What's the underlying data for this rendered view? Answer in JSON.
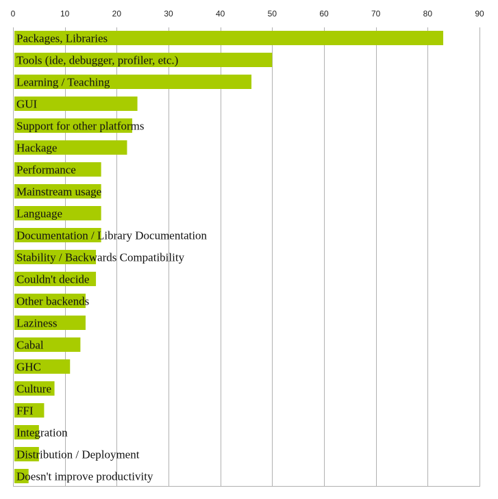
{
  "chart_data": {
    "type": "bar",
    "orientation": "horizontal",
    "title": "",
    "xlabel": "",
    "ylabel": "",
    "xlim": [
      0,
      90
    ],
    "x_ticks": [
      0,
      10,
      20,
      30,
      40,
      50,
      60,
      70,
      80,
      90
    ],
    "x_tick_labels": [
      "0",
      "10",
      "20",
      "30",
      "40",
      "50",
      "60",
      "70",
      "80",
      "90"
    ],
    "x_axis_position": "top",
    "grid": "vertical",
    "legend": "none",
    "bar_color": "#a8cc00",
    "grid_color": "#b0b0b0",
    "categories": [
      "Packages, Libraries",
      "Tools (ide, debugger, profiler, etc.)",
      "Learning / Teaching",
      "GUI",
      "Support for other platforms",
      "Hackage",
      "Performance",
      "Mainstream usage",
      "Language",
      "Documentation / Library Documentation",
      "Stability / Backwards Compatibility",
      "Couldn't decide",
      "Other backends",
      "Laziness",
      "Cabal",
      "GHC",
      "Culture",
      "FFI",
      "Integration",
      "Distribution / Deployment",
      "Doesn't improve productivity"
    ],
    "values": [
      83,
      50,
      46,
      24,
      23,
      22,
      17,
      17,
      17,
      17,
      16,
      16,
      14,
      14,
      13,
      11,
      8,
      6,
      5,
      5,
      3
    ]
  }
}
